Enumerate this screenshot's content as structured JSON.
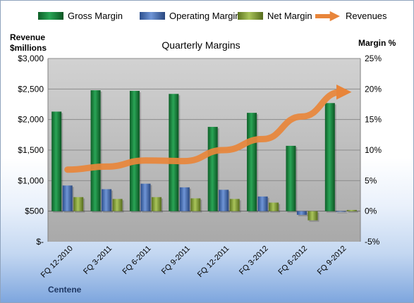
{
  "chart_data": {
    "type": "bar",
    "title": "Quarterly Margins",
    "company": "Centene",
    "y_left_label_line1": "Revenue",
    "y_left_label_line2": "$millions",
    "y_right_label": "Margin %",
    "categories": [
      "FQ 12-2010",
      "FQ 3-2011",
      "FQ 6-2011",
      "FQ 9-2011",
      "FQ 12-2011",
      "FQ 3-2012",
      "FQ 6-2012",
      "FQ 9-2012"
    ],
    "left_ticks": [
      "$-",
      "$500",
      "$1,000",
      "$1,500",
      "$2,000",
      "$2,500",
      "$3,000"
    ],
    "right_ticks": [
      "-5%",
      "0%",
      "5%",
      "10%",
      "15%",
      "20%",
      "25%"
    ],
    "left_ylim": [
      0,
      3000
    ],
    "right_ylim": [
      -5,
      25
    ],
    "legend_position": "top",
    "series": [
      {
        "name": "Gross Margin",
        "axis": "right",
        "kind": "bar",
        "color": "#1e8a43",
        "values": [
          16.3,
          19.8,
          19.7,
          19.2,
          13.8,
          16.1,
          10.7,
          17.7
        ]
      },
      {
        "name": "Operating Margin",
        "axis": "right",
        "kind": "bar",
        "color": "#4a72b8",
        "values": [
          4.2,
          3.6,
          4.5,
          3.9,
          3.5,
          2.4,
          -0.6,
          -0.1
        ]
      },
      {
        "name": "Net Margin",
        "axis": "right",
        "kind": "bar",
        "color": "#8aa83a",
        "values": [
          2.3,
          2.0,
          2.3,
          2.1,
          2.0,
          1.4,
          -1.5,
          0.2
        ]
      },
      {
        "name": "Revenues",
        "axis": "left",
        "kind": "line",
        "color": "#e8853a",
        "values": [
          1180,
          1230,
          1330,
          1320,
          1500,
          1680,
          2050,
          2450
        ]
      }
    ]
  }
}
